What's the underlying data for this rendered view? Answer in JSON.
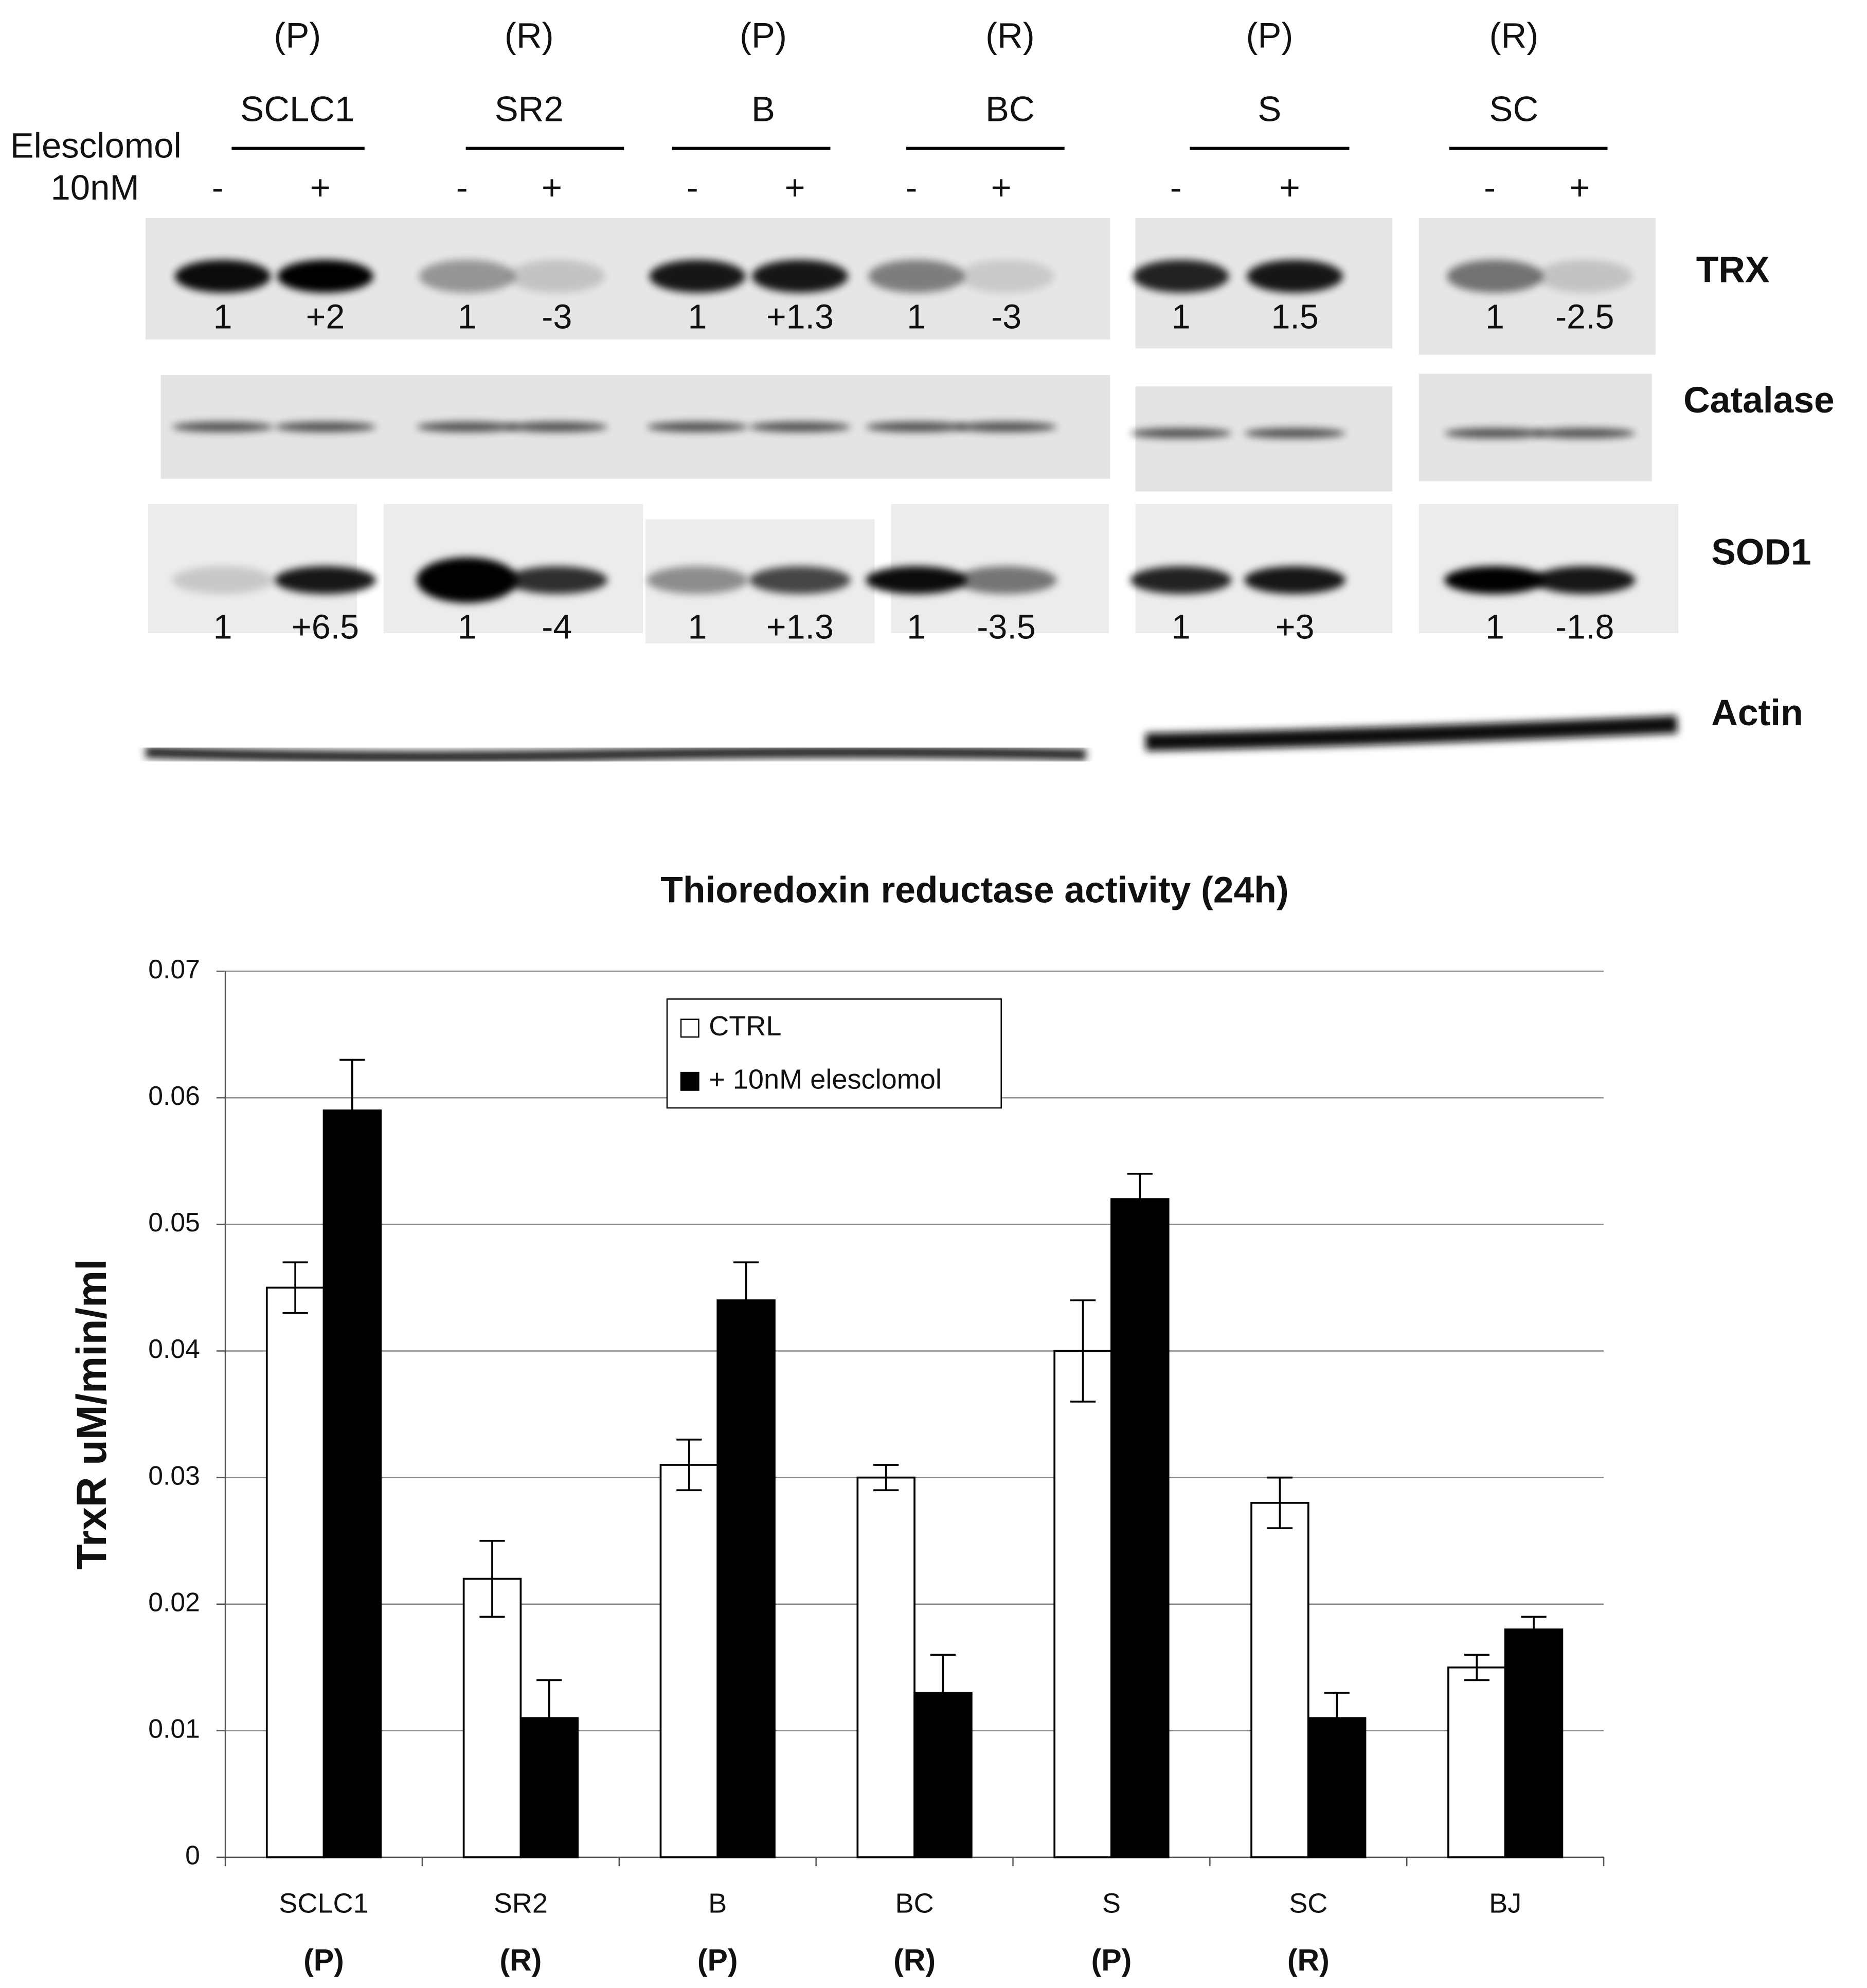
{
  "blot": {
    "groups": [
      {
        "status": "(P)",
        "name": "SCLC1"
      },
      {
        "status": "(R)",
        "name": "SR2"
      },
      {
        "status": "(P)",
        "name": "B"
      },
      {
        "status": "(R)",
        "name": "BC"
      },
      {
        "status": "(P)",
        "name": "S"
      },
      {
        "status": "(R)",
        "name": "SC"
      }
    ],
    "treatment_label": "Elesclomol",
    "dose_label": "10nM",
    "lane_signs": [
      "-",
      "+",
      "-",
      "+",
      "-",
      "+",
      "-",
      "+",
      "-",
      "+",
      "-",
      "+"
    ],
    "rows": [
      {
        "label": "TRX",
        "quant": [
          "1",
          "+2",
          "1",
          "-3",
          "1",
          "+1.3",
          "1",
          "-3",
          "1",
          "1.5",
          "1",
          "-2.5"
        ]
      },
      {
        "label": "Catalase"
      },
      {
        "label": "SOD1",
        "quant": [
          "1",
          "+6.5",
          "1",
          "-4",
          "1",
          "+1.3",
          "1",
          "-3.5",
          "1",
          "+3",
          "1",
          "-1.8"
        ]
      },
      {
        "label": "Actin"
      }
    ]
  },
  "chart_data": {
    "type": "bar",
    "title": "Thioredoxin reductase activity (24h)",
    "y_label": "TrxR uM/min/ml",
    "categories": [
      "SCLC1",
      "SR2",
      "B",
      "BC",
      "S",
      "SC",
      "BJ"
    ],
    "category_sublabels": [
      "(P)",
      "(R)",
      "(P)",
      "(R)",
      "(P)",
      "(R)",
      null
    ],
    "series": [
      {
        "name": "CTRL",
        "color": "#ffffff",
        "values": [
          0.045,
          0.022,
          0.031,
          0.03,
          0.04,
          0.028,
          0.015
        ],
        "errors": [
          0.002,
          0.003,
          0.002,
          0.001,
          0.004,
          0.002,
          0.001
        ]
      },
      {
        "name": "+ 10nM elesclomol",
        "color": "#000000",
        "values": [
          0.059,
          0.011,
          0.044,
          0.013,
          0.052,
          0.011,
          0.018
        ],
        "errors": [
          0.004,
          0.003,
          0.003,
          0.003,
          0.002,
          0.002,
          0.001
        ]
      }
    ],
    "ylim": [
      0,
      0.07
    ],
    "yticks": [
      0,
      0.01,
      0.02,
      0.03,
      0.04,
      0.05,
      0.06,
      0.07
    ],
    "grid": true,
    "legend": "top"
  }
}
